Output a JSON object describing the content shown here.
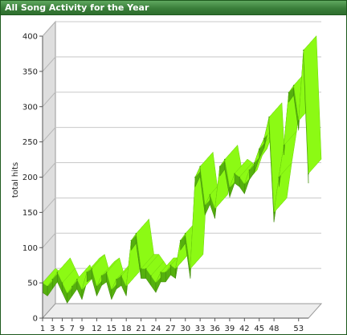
{
  "window": {
    "title": "All Song Activity for the Year"
  },
  "chart_data": {
    "type": "area",
    "ylabel": "total hits",
    "xlabel": "",
    "ylim": [
      0,
      400
    ],
    "yticks": [
      0,
      50,
      100,
      150,
      200,
      250,
      300,
      350,
      400
    ],
    "xticks": [
      1,
      3,
      5,
      7,
      9,
      12,
      15,
      18,
      21,
      24,
      27,
      30,
      33,
      36,
      39,
      42,
      45,
      48,
      53
    ],
    "grid": true,
    "render": "3d-ribbon",
    "x": [
      1,
      2,
      3,
      4,
      5,
      6,
      7,
      8,
      9,
      10,
      11,
      12,
      13,
      14,
      15,
      16,
      17,
      18,
      19,
      20,
      21,
      22,
      23,
      24,
      25,
      26,
      27,
      28,
      29,
      30,
      31,
      32,
      33,
      34,
      35,
      36,
      37,
      38,
      39,
      40,
      41,
      42,
      43,
      44,
      45,
      46,
      47,
      48,
      49,
      50,
      51,
      52,
      53,
      54,
      55
    ],
    "series": [
      {
        "values": [
          50,
          45,
          55,
          65,
          50,
          35,
          45,
          55,
          40,
          65,
          70,
          45,
          60,
          65,
          40,
          55,
          60,
          45,
          110,
          120,
          70,
          70,
          60,
          50,
          65,
          65,
          75,
          70,
          110,
          120,
          70,
          200,
          215,
          160,
          175,
          155,
          215,
          225,
          185,
          205,
          200,
          190,
          210,
          220,
          240,
          255,
          285,
          150,
          200,
          245,
          320,
          330,
          280,
          380,
          205
        ]
      }
    ],
    "colors": {
      "top": "#8cfa14",
      "side": "#55b00e",
      "wall": "#dedede",
      "floor": "#eeeeee",
      "grid": "#c8c8c8"
    }
  }
}
